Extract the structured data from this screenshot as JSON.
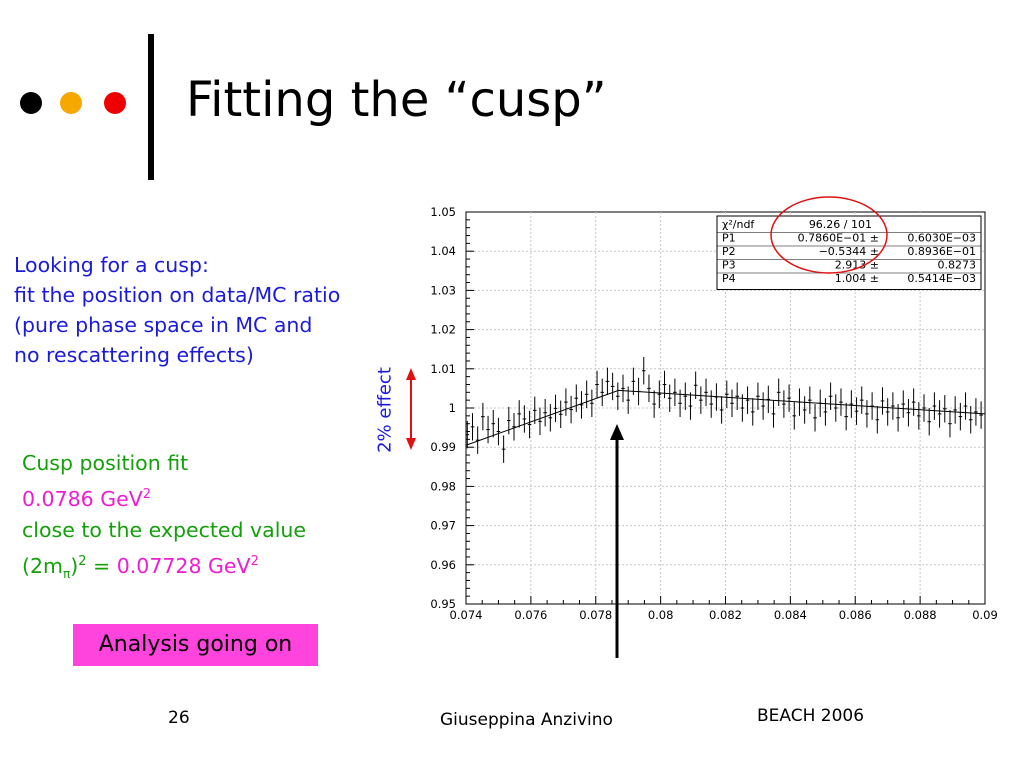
{
  "slide": {
    "title": "Fitting the “cusp”",
    "bullets_colors": [
      "#000000",
      "#f7a800",
      "#ee0000"
    ],
    "text_blocks": {
      "blue": [
        "Looking for a cusp:",
        "fit the position on data/MC ratio",
        "(pure phase space in MC and",
        "no rescattering effects)"
      ],
      "green": {
        "line1": "Cusp position fit",
        "line2_value": "0.0786 GeV",
        "line2_sup": "2",
        "line3": "close to the expected value",
        "line4_prefix": "(2m",
        "line4_sub": "π",
        "line4_sup": "2",
        "line4_eq": " = ",
        "line4_value": "0.07728 GeV",
        "line4_value_sup": "2"
      }
    },
    "analysis_label": "Analysis going on",
    "effect_label": "2% effect",
    "footer": {
      "page": "26",
      "author": "Giuseppina Anzivino",
      "event": "BEACH 2006"
    },
    "colors": {
      "blue": "#1a1adb",
      "green": "#14a00a",
      "magenta": "#ee1ed0",
      "arrow_red": "#e01010"
    }
  },
  "chart_data": {
    "type": "scatter",
    "xlim": [
      0.074,
      0.09
    ],
    "ylim": [
      0.95,
      1.05
    ],
    "xticks": [
      "0.074",
      "0.076",
      "0.078",
      "0.08",
      "0.082",
      "0.084",
      "0.086",
      "0.088",
      "0.09"
    ],
    "yticks": [
      "0.95",
      "0.96",
      "0.97",
      "0.98",
      "0.99",
      "1",
      "1.01",
      "1.02",
      "1.03",
      "1.04",
      "1.05"
    ],
    "grid": true,
    "fit_line": {
      "x": [
        0.074,
        0.0787,
        0.09
      ],
      "y": [
        0.9905,
        1.0045,
        0.9985
      ]
    },
    "points": [
      [
        0.07404,
        0.9932
      ],
      [
        0.0742,
        0.9952
      ],
      [
        0.07436,
        0.9918
      ],
      [
        0.07452,
        0.9978
      ],
      [
        0.07468,
        0.9945
      ],
      [
        0.07484,
        0.996
      ],
      [
        0.075,
        0.994
      ],
      [
        0.07516,
        0.9895
      ],
      [
        0.07532,
        0.9968
      ],
      [
        0.07548,
        0.9952
      ],
      [
        0.07564,
        0.9985
      ],
      [
        0.0758,
        0.9972
      ],
      [
        0.07596,
        0.9958
      ],
      [
        0.07612,
        0.9994
      ],
      [
        0.07628,
        0.9966
      ],
      [
        0.07644,
        0.9988
      ],
      [
        0.0766,
        0.9975
      ],
      [
        0.07676,
        0.9999
      ],
      [
        0.07692,
        0.9984
      ],
      [
        0.07708,
        1.0015
      ],
      [
        0.07724,
        0.9996
      ],
      [
        0.0774,
        1.0025
      ],
      [
        0.07756,
        1.0008
      ],
      [
        0.07772,
        1.0035
      ],
      [
        0.07788,
        1.0012
      ],
      [
        0.07804,
        1.006
      ],
      [
        0.0782,
        1.004
      ],
      [
        0.07836,
        1.0068
      ],
      [
        0.07852,
        1.0055
      ],
      [
        0.07868,
        1.003
      ],
      [
        0.07884,
        1.005
      ],
      [
        0.079,
        1.002
      ],
      [
        0.07916,
        1.0068
      ],
      [
        0.07932,
        1.0042
      ],
      [
        0.07948,
        1.0095
      ],
      [
        0.07964,
        1.005
      ],
      [
        0.0798,
        1.001
      ],
      [
        0.07996,
        1.0035
      ],
      [
        0.08012,
        1.006
      ],
      [
        0.08028,
        1.0025
      ],
      [
        0.08044,
        1.004
      ],
      [
        0.0806,
        1.0012
      ],
      [
        0.08076,
        1.003
      ],
      [
        0.08092,
        1.0005
      ],
      [
        0.08108,
        1.0058
      ],
      [
        0.08124,
        1.002
      ],
      [
        0.0814,
        1.004
      ],
      [
        0.08156,
        1.001
      ],
      [
        0.08172,
        1.0028
      ],
      [
        0.08188,
        0.9995
      ],
      [
        0.08204,
        1.0035
      ],
      [
        0.0822,
        1.0012
      ],
      [
        0.08236,
        1.003
      ],
      [
        0.08252,
        1.0
      ],
      [
        0.08268,
        1.002
      ],
      [
        0.08284,
        0.999
      ],
      [
        0.083,
        1.003
      ],
      [
        0.08316,
        1.0005
      ],
      [
        0.08332,
        1.0022
      ],
      [
        0.08348,
        0.9985
      ],
      [
        0.08364,
        1.004
      ],
      [
        0.0838,
        1.001
      ],
      [
        0.08396,
        1.0025
      ],
      [
        0.08412,
        0.998
      ],
      [
        0.08428,
        1.0015
      ],
      [
        0.08444,
        0.9995
      ],
      [
        0.0846,
        1.002
      ],
      [
        0.08476,
        0.9975
      ],
      [
        0.08492,
        1.0012
      ],
      [
        0.08508,
        0.999
      ],
      [
        0.08524,
        1.003
      ],
      [
        0.0854,
        1.0
      ],
      [
        0.08556,
        1.0015
      ],
      [
        0.08572,
        0.9978
      ],
      [
        0.08588,
        1.001
      ],
      [
        0.08604,
        0.9992
      ],
      [
        0.0862,
        1.002
      ],
      [
        0.08636,
        0.9985
      ],
      [
        0.08652,
        1.0005
      ],
      [
        0.08668,
        0.997
      ],
      [
        0.08684,
        1.0018
      ],
      [
        0.087,
        0.999
      ],
      [
        0.08716,
        1.0005
      ],
      [
        0.08732,
        0.9975
      ],
      [
        0.08748,
        1.001
      ],
      [
        0.08764,
        0.9988
      ],
      [
        0.0878,
        1.0015
      ],
      [
        0.08796,
        0.998
      ],
      [
        0.08812,
        1.0
      ],
      [
        0.08828,
        0.9965
      ],
      [
        0.08844,
        1.0005
      ],
      [
        0.0886,
        0.9985
      ],
      [
        0.08876,
        0.9998
      ],
      [
        0.08892,
        0.996
      ],
      [
        0.08908,
        0.9995
      ],
      [
        0.08924,
        0.9978
      ],
      [
        0.0894,
        1.0005
      ],
      [
        0.08956,
        0.997
      ],
      [
        0.08972,
        0.999
      ],
      [
        0.08988,
        0.9982
      ]
    ],
    "error": 0.0035,
    "stats_box": {
      "rows": [
        [
          "χ²/ndf",
          "96.26   /   101",
          ""
        ],
        [
          "P1",
          "0.7860E−01 ±",
          "0.6030E−03"
        ],
        [
          "P2",
          "−0.5344 ±",
          "0.8936E−01"
        ],
        [
          "P3",
          "2.913 ±",
          "0.8273"
        ],
        [
          "P4",
          "1.004 ±",
          "0.5414E−03"
        ]
      ]
    }
  }
}
